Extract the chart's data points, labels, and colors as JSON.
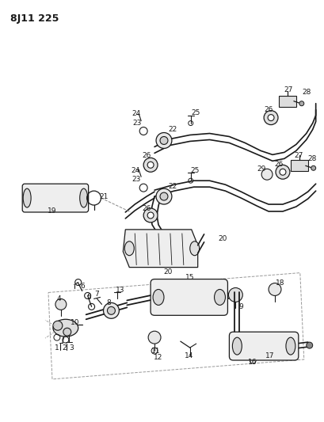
{
  "title": "8J11 225",
  "bg_color": "#ffffff",
  "line_color": "#1a1a1a",
  "title_fontsize": 9,
  "label_fontsize": 6.5,
  "fig_width": 4.09,
  "fig_height": 5.33,
  "dpi": 100
}
